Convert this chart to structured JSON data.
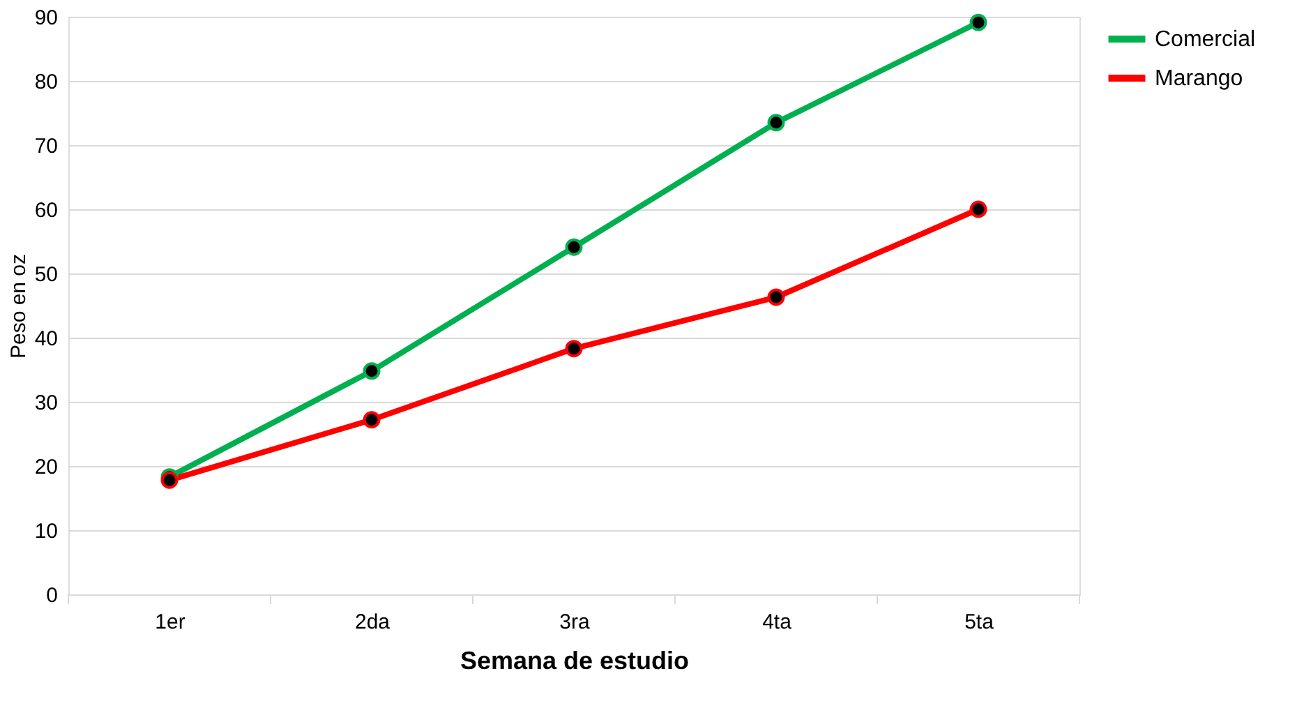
{
  "chart_data": {
    "type": "line",
    "xlabel": "Semana de estudio",
    "ylabel": "Peso en oz",
    "categories": [
      "1er",
      "2da",
      "3ra",
      "4ta",
      "5ta"
    ],
    "series": [
      {
        "name": "Comercial",
        "color": "#00b050",
        "values": [
          18.3,
          34.8,
          54.1,
          73.5,
          89.1
        ]
      },
      {
        "name": "Marango",
        "color": "#ff0000",
        "values": [
          17.8,
          27.2,
          38.3,
          46.3,
          60.0
        ]
      }
    ],
    "ylim": [
      0,
      90
    ],
    "yticks": [
      0,
      10,
      20,
      30,
      40,
      50,
      60,
      70,
      80,
      90
    ],
    "grid": "y",
    "legend": "right",
    "marker": "circle",
    "line_style": "solid"
  }
}
